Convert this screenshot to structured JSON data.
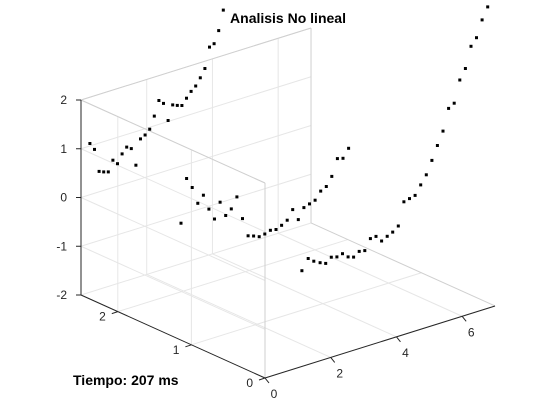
{
  "footer": {
    "label": "Tiempo:",
    "value": "207",
    "unit": "ms"
  },
  "chart_data": {
    "type": "scatter",
    "projection": "3d",
    "title": "Analisis No lineal",
    "xlabel": "",
    "ylabel": "",
    "zlabel": "",
    "xlim": [
      0,
      7
    ],
    "ylim": [
      0,
      2.5
    ],
    "zlim": [
      -2,
      2
    ],
    "xticks": [
      0,
      2,
      4,
      6
    ],
    "yticks": [
      0,
      1,
      2
    ],
    "zticks": [
      -2,
      -1,
      0,
      1,
      2
    ],
    "grid": true,
    "marker_color": "#000000",
    "series": [
      {
        "points": [
          [
            0.27,
            2.5,
            1.05
          ],
          [
            0.41,
            2.5,
            0.9
          ],
          [
            0.55,
            2.5,
            0.42
          ],
          [
            0.69,
            2.5,
            0.38
          ],
          [
            0.83,
            2.5,
            0.35
          ],
          [
            0.97,
            2.5,
            0.56
          ],
          [
            1.11,
            2.5,
            0.46
          ],
          [
            1.25,
            2.5,
            0.63
          ],
          [
            1.39,
            2.5,
            0.74
          ],
          [
            1.53,
            2.5,
            0.68
          ],
          [
            1.67,
            2.5,
            0.31
          ],
          [
            1.81,
            2.5,
            0.82
          ],
          [
            1.95,
            2.5,
            0.87
          ],
          [
            2.09,
            2.5,
            0.96
          ],
          [
            2.23,
            2.5,
            1.2
          ],
          [
            2.37,
            2.5,
            1.49
          ],
          [
            2.51,
            2.5,
            1.4
          ],
          [
            2.65,
            2.5,
            1.02
          ],
          [
            2.79,
            2.5,
            1.31
          ],
          [
            2.93,
            2.5,
            1.27
          ],
          [
            3.07,
            2.5,
            1.24
          ],
          [
            3.21,
            2.5,
            1.36
          ],
          [
            3.35,
            2.5,
            1.47
          ],
          [
            3.49,
            2.5,
            1.55
          ],
          [
            3.63,
            2.5,
            1.69
          ],
          [
            3.77,
            2.5,
            1.85
          ],
          [
            3.91,
            2.5,
            2.26
          ],
          [
            4.05,
            2.5,
            2.3
          ],
          [
            4.19,
            2.5,
            2.54
          ],
          [
            4.33,
            2.5,
            2.93
          ],
          [
            0.58,
            1.4,
            0.1
          ],
          [
            0.75,
            1.4,
            0.98
          ],
          [
            0.92,
            1.4,
            0.76
          ],
          [
            1.09,
            1.4,
            0.4
          ],
          [
            1.26,
            1.4,
            0.53
          ],
          [
            1.43,
            1.4,
            0.21
          ],
          [
            1.6,
            1.4,
            -0.03
          ],
          [
            1.77,
            1.4,
            0.28
          ],
          [
            1.94,
            1.4,
            -0.03
          ],
          [
            2.11,
            1.4,
            0.07
          ],
          [
            2.28,
            1.4,
            0.28
          ],
          [
            2.45,
            1.4,
            -0.2
          ],
          [
            2.62,
            1.4,
            -0.59
          ],
          [
            2.79,
            1.4,
            -0.63
          ],
          [
            2.96,
            1.4,
            -0.68
          ],
          [
            3.13,
            1.4,
            -0.66
          ],
          [
            3.3,
            1.4,
            -0.62
          ],
          [
            3.47,
            1.4,
            -0.64
          ],
          [
            3.64,
            1.4,
            -0.59
          ],
          [
            3.81,
            1.4,
            -0.52
          ],
          [
            3.98,
            1.4,
            -0.34
          ],
          [
            4.15,
            1.4,
            -0.58
          ],
          [
            4.32,
            1.4,
            -0.37
          ],
          [
            4.49,
            1.4,
            -0.33
          ],
          [
            4.66,
            1.4,
            -0.29
          ],
          [
            4.83,
            1.4,
            -0.14
          ],
          [
            5.0,
            1.4,
            -0.08
          ],
          [
            5.17,
            1.4,
            0.09
          ],
          [
            5.34,
            1.4,
            0.42
          ],
          [
            5.51,
            1.4,
            0.39
          ],
          [
            5.68,
            1.4,
            0.56
          ],
          [
            1.19,
            0.03,
            -0.07
          ],
          [
            1.36,
            0.02,
            0.15
          ],
          [
            1.53,
            0.02,
            0.06
          ],
          [
            1.7,
            0.01,
            0.0
          ],
          [
            1.87,
            0.01,
            -0.05
          ],
          [
            2.04,
            0.01,
            0.04
          ],
          [
            2.21,
            0.01,
            0.01
          ],
          [
            2.38,
            0.01,
            0.04
          ],
          [
            2.55,
            0.01,
            -0.06
          ],
          [
            2.72,
            0.01,
            -0.1
          ],
          [
            2.89,
            0.01,
            -0.02
          ],
          [
            3.06,
            0.01,
            -0.04
          ],
          [
            3.23,
            0.01,
            0.17
          ],
          [
            3.4,
            0.01,
            0.18
          ],
          [
            3.57,
            0.01,
            0.05
          ],
          [
            3.74,
            0.01,
            0.11
          ],
          [
            3.91,
            0.01,
            0.16
          ],
          [
            4.08,
            0.01,
            0.25
          ],
          [
            4.25,
            0.01,
            0.71
          ],
          [
            4.42,
            0.01,
            0.74
          ],
          [
            4.59,
            0.01,
            0.77
          ],
          [
            4.76,
            0.01,
            0.95
          ],
          [
            4.93,
            0.01,
            1.12
          ],
          [
            5.1,
            0.01,
            1.38
          ],
          [
            5.27,
            0.01,
            1.65
          ],
          [
            5.44,
            0.01,
            1.91
          ],
          [
            5.61,
            0.01,
            2.34
          ],
          [
            5.78,
            0.01,
            2.41
          ],
          [
            5.95,
            0.01,
            2.85
          ],
          [
            6.12,
            0.01,
            3.05
          ],
          [
            6.29,
            0.01,
            3.47
          ],
          [
            6.46,
            0.01,
            3.61
          ],
          [
            6.63,
            0.01,
            3.94
          ],
          [
            6.8,
            0.01,
            4.17
          ],
          [
            6.97,
            0.01,
            4.51
          ]
        ]
      }
    ]
  }
}
